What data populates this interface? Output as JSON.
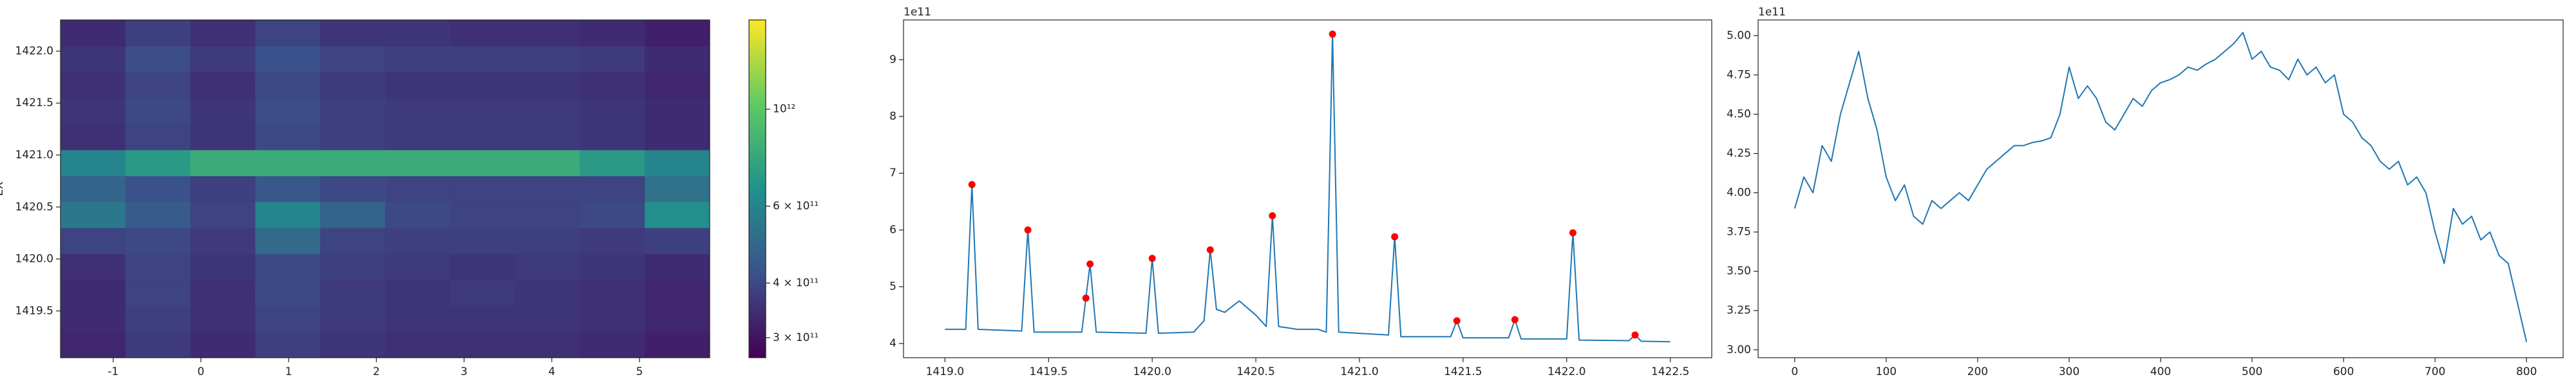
{
  "chart_data": [
    {
      "type": "heatmap",
      "ylabel": "EX",
      "xlim": [
        -1.6,
        5.8
      ],
      "ylim": [
        1419.05,
        1422.3
      ],
      "xticks": [
        -1,
        0,
        1,
        2,
        3,
        4,
        5
      ],
      "yticks": [
        1419.5,
        {
          "value": 1420,
          "label": "1420.0"
        },
        1420.5,
        {
          "value": 1421,
          "label": "1421.0"
        },
        1421.5,
        {
          "value": 1422,
          "label": "1422.0"
        }
      ],
      "colormap": "viridis",
      "color_scale": "log",
      "clim": [
        270000000000.0,
        1600000000000.0
      ],
      "colorbar_ticks": [
        {
          "value": 300000000000.0,
          "label": "3 × 10¹¹"
        },
        {
          "value": 400000000000.0,
          "label": "4 × 10¹¹"
        },
        {
          "value": 600000000000.0,
          "label": "6 × 10¹¹"
        },
        {
          "value": 1000000000000.0,
          "label": "10¹²"
        }
      ],
      "z": [
        [
          330000000000.0,
          370000000000.0,
          340000000000.0,
          380000000000.0,
          360000000000.0,
          350000000000.0,
          350000000000.0,
          350000000000.0,
          340000000000.0,
          320000000000.0
        ],
        [
          340000000000.0,
          380000000000.0,
          350000000000.0,
          390000000000.0,
          370000000000.0,
          360000000000.0,
          360000000000.0,
          360000000000.0,
          350000000000.0,
          330000000000.0
        ],
        [
          340000000000.0,
          390000000000.0,
          350000000000.0,
          400000000000.0,
          370000000000.0,
          360000000000.0,
          370000000000.0,
          360000000000.0,
          350000000000.0,
          330000000000.0
        ],
        [
          350000000000.0,
          390000000000.0,
          360000000000.0,
          400000000000.0,
          380000000000.0,
          370000000000.0,
          360000000000.0,
          370000000000.0,
          360000000000.0,
          340000000000.0
        ],
        [
          390000000000.0,
          400000000000.0,
          370000000000.0,
          500000000000.0,
          390000000000.0,
          380000000000.0,
          380000000000.0,
          380000000000.0,
          370000000000.0,
          380000000000.0
        ],
        [
          550000000000.0,
          450000000000.0,
          390000000000.0,
          600000000000.0,
          480000000000.0,
          400000000000.0,
          390000000000.0,
          390000000000.0,
          400000000000.0,
          650000000000.0
        ],
        [
          480000000000.0,
          420000000000.0,
          380000000000.0,
          440000000000.0,
          400000000000.0,
          390000000000.0,
          390000000000.0,
          390000000000.0,
          390000000000.0,
          520000000000.0
        ],
        [
          600000000000.0,
          700000000000.0,
          800000000000.0,
          800000000000.0,
          800000000000.0,
          800000000000.0,
          800000000000.0,
          800000000000.0,
          700000000000.0,
          600000000000.0
        ],
        [
          350000000000.0,
          390000000000.0,
          360000000000.0,
          400000000000.0,
          380000000000.0,
          370000000000.0,
          370000000000.0,
          370000000000.0,
          360000000000.0,
          340000000000.0
        ],
        [
          360000000000.0,
          400000000000.0,
          360000000000.0,
          410000000000.0,
          380000000000.0,
          370000000000.0,
          370000000000.0,
          370000000000.0,
          360000000000.0,
          340000000000.0
        ],
        [
          350000000000.0,
          390000000000.0,
          350000000000.0,
          400000000000.0,
          370000000000.0,
          360000000000.0,
          360000000000.0,
          360000000000.0,
          350000000000.0,
          330000000000.0
        ],
        [
          360000000000.0,
          410000000000.0,
          370000000000.0,
          420000000000.0,
          390000000000.0,
          380000000000.0,
          380000000000.0,
          380000000000.0,
          370000000000.0,
          340000000000.0
        ],
        [
          340000000000.0,
          380000000000.0,
          350000000000.0,
          390000000000.0,
          360000000000.0,
          360000000000.0,
          350000000000.0,
          350000000000.0,
          340000000000.0,
          320000000000.0
        ]
      ]
    },
    {
      "type": "line",
      "offset_label": "1e11",
      "xlim": [
        1418.8,
        1422.7
      ],
      "ylim": [
        3.75,
        9.7
      ],
      "xticks": [
        {
          "value": 1419,
          "label": "1419.0"
        },
        1419.5,
        {
          "value": 1420,
          "label": "1420.0"
        },
        1420.5,
        {
          "value": 1421,
          "label": "1421.0"
        },
        1421.5,
        {
          "value": 1422,
          "label": "1422.0"
        },
        1422.5
      ],
      "yticks": [
        4,
        5,
        6,
        7,
        8,
        9
      ],
      "x": [
        1419.0,
        1419.1,
        1419.13,
        1419.16,
        1419.37,
        1419.4,
        1419.43,
        1419.66,
        1419.68,
        1419.7,
        1419.73,
        1419.97,
        1420.0,
        1420.03,
        1420.2,
        1420.25,
        1420.28,
        1420.31,
        1420.35,
        1420.42,
        1420.5,
        1420.55,
        1420.58,
        1420.61,
        1420.7,
        1420.8,
        1420.84,
        1420.87,
        1420.9,
        1421.14,
        1421.17,
        1421.2,
        1421.44,
        1421.47,
        1421.5,
        1421.72,
        1421.75,
        1421.78,
        1422.0,
        1422.03,
        1422.06,
        1422.3,
        1422.33,
        1422.36,
        1422.5
      ],
      "series": [
        {
          "color": "#1f77b4",
          "values": [
            4.25,
            4.25,
            6.8,
            4.25,
            4.22,
            6.0,
            4.2,
            4.2,
            4.8,
            5.4,
            4.2,
            4.18,
            5.5,
            4.18,
            4.2,
            4.4,
            5.65,
            4.6,
            4.55,
            4.75,
            4.5,
            4.3,
            6.25,
            4.3,
            4.25,
            4.25,
            4.2,
            9.45,
            4.2,
            4.15,
            5.88,
            4.12,
            4.12,
            4.4,
            4.1,
            4.1,
            4.42,
            4.08,
            4.08,
            5.95,
            4.06,
            4.05,
            4.15,
            4.04,
            4.03
          ]
        }
      ],
      "markers": {
        "color": "red",
        "x": [
          1419.13,
          1419.4,
          1419.68,
          1419.7,
          1420.0,
          1420.28,
          1420.58,
          1420.87,
          1421.17,
          1421.47,
          1421.75,
          1422.03,
          1422.33
        ],
        "values": [
          6.8,
          6.0,
          4.8,
          5.4,
          5.5,
          5.65,
          6.25,
          9.45,
          5.88,
          4.4,
          4.42,
          5.95,
          4.15
        ]
      }
    },
    {
      "type": "line",
      "offset_label": "1e11",
      "xlim": [
        -40,
        840
      ],
      "ylim": [
        2.95,
        5.1
      ],
      "xticks": [
        0,
        100,
        200,
        300,
        400,
        500,
        600,
        700,
        800
      ],
      "yticks": [
        {
          "value": 3,
          "label": "3.00"
        },
        3.25,
        {
          "value": 3.5,
          "label": "3.50"
        },
        3.75,
        {
          "value": 4,
          "label": "4.00"
        },
        4.25,
        {
          "value": 4.5,
          "label": "4.50"
        },
        4.75,
        {
          "value": 5,
          "label": "5.00"
        }
      ],
      "x": [
        0,
        10,
        20,
        30,
        40,
        50,
        60,
        70,
        80,
        90,
        100,
        110,
        120,
        130,
        140,
        150,
        160,
        170,
        180,
        190,
        200,
        210,
        220,
        230,
        240,
        250,
        260,
        270,
        280,
        290,
        300,
        310,
        320,
        330,
        340,
        350,
        360,
        370,
        380,
        390,
        400,
        410,
        420,
        430,
        440,
        450,
        460,
        470,
        480,
        490,
        500,
        510,
        520,
        530,
        540,
        550,
        560,
        570,
        580,
        590,
        600,
        610,
        620,
        630,
        640,
        650,
        660,
        670,
        680,
        690,
        700,
        710,
        720,
        730,
        740,
        750,
        760,
        770,
        780,
        790,
        800
      ],
      "series": [
        {
          "color": "#1f77b4",
          "values": [
            3.9,
            4.1,
            4.0,
            4.3,
            4.2,
            4.5,
            4.7,
            4.9,
            4.6,
            4.4,
            4.1,
            3.95,
            4.05,
            3.85,
            3.8,
            3.95,
            3.9,
            3.95,
            4.0,
            3.95,
            4.05,
            4.15,
            4.2,
            4.25,
            4.3,
            4.3,
            4.32,
            4.33,
            4.35,
            4.5,
            4.8,
            4.6,
            4.68,
            4.6,
            4.45,
            4.4,
            4.5,
            4.6,
            4.55,
            4.65,
            4.7,
            4.72,
            4.75,
            4.8,
            4.78,
            4.82,
            4.85,
            4.9,
            4.95,
            5.02,
            4.85,
            4.9,
            4.8,
            4.78,
            4.72,
            4.85,
            4.75,
            4.8,
            4.7,
            4.75,
            4.5,
            4.45,
            4.35,
            4.3,
            4.2,
            4.15,
            4.2,
            4.05,
            4.1,
            4.0,
            3.75,
            3.55,
            3.9,
            3.8,
            3.85,
            3.7,
            3.75,
            3.6,
            3.55,
            3.3,
            3.05
          ]
        }
      ]
    }
  ]
}
